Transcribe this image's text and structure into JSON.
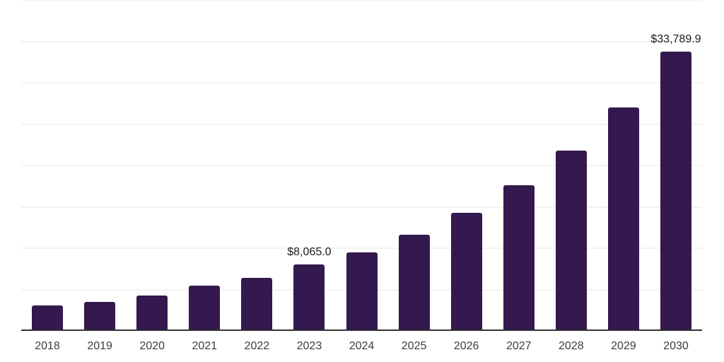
{
  "chart_data": {
    "type": "bar",
    "title": "",
    "xlabel": "",
    "ylabel": "",
    "categories": [
      "2018",
      "2019",
      "2020",
      "2021",
      "2022",
      "2023",
      "2024",
      "2025",
      "2026",
      "2027",
      "2028",
      "2029",
      "2030"
    ],
    "values": [
      3100,
      3530,
      4250,
      5440,
      6440,
      8065.0,
      9490,
      11620,
      14270,
      17630,
      21820,
      27030,
      33789.9
    ],
    "data_labels": {
      "2023": "$8,065.0",
      "2030": "$33,789.9"
    },
    "ylim": [
      0,
      40000
    ],
    "gridline_step": 5000,
    "grid": "horizontal-only",
    "legend": "none",
    "colors": {
      "bar": "#33194d",
      "axis_line": "#333333",
      "gridline": "#f2f2f2",
      "data_label_text": "#1c1c1c",
      "tick_label_text": "#3d3d3d",
      "background": "#ffffff"
    }
  }
}
